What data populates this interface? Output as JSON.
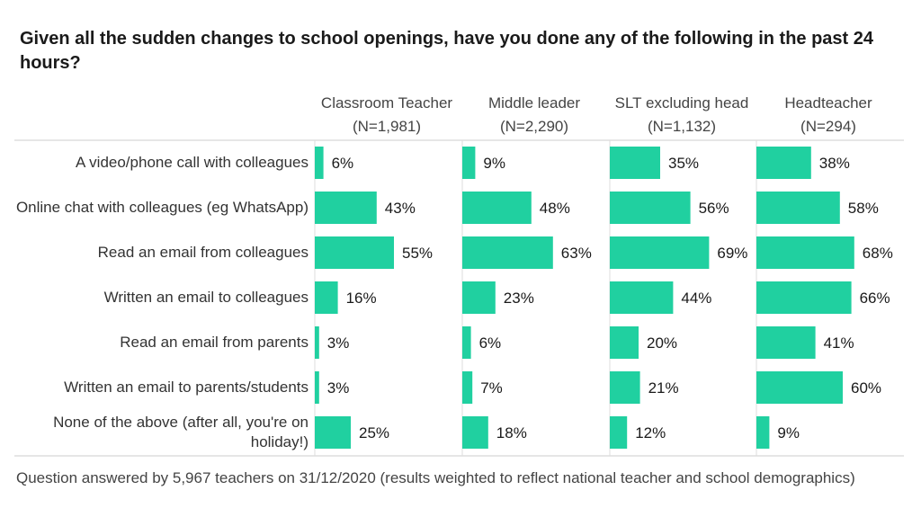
{
  "chart_data": {
    "type": "bar",
    "title": "Given all the sudden changes to school openings, have you done any of the following in the past 24 hours?",
    "categories": [
      "A video/phone call with colleagues",
      "Online chat with colleagues (eg WhatsApp)",
      "Read an email from colleagues",
      "Written an email to colleagues",
      "Read an email from parents",
      "Written an email to parents/students",
      "None of the above (after all, you're on holiday!)"
    ],
    "series": [
      {
        "name": "Classroom Teacher",
        "n": "(N=1,981)",
        "values": [
          6,
          43,
          55,
          16,
          3,
          3,
          25
        ]
      },
      {
        "name": "Middle leader",
        "n": "(N=2,290)",
        "values": [
          9,
          48,
          63,
          23,
          6,
          7,
          18
        ]
      },
      {
        "name": "SLT excluding head",
        "n": "(N=1,132)",
        "values": [
          35,
          56,
          69,
          44,
          20,
          21,
          12
        ]
      },
      {
        "name": "Headteacher",
        "n": "(N=294)",
        "values": [
          38,
          58,
          68,
          66,
          41,
          60,
          9
        ]
      }
    ],
    "value_suffix": "%",
    "xlim": [
      0,
      100
    ],
    "bar_color": "#20d0a0",
    "footnote": "Question answered by 5,967 teachers on 31/12/2020 (results weighted to reflect national teacher and school demographics)"
  }
}
